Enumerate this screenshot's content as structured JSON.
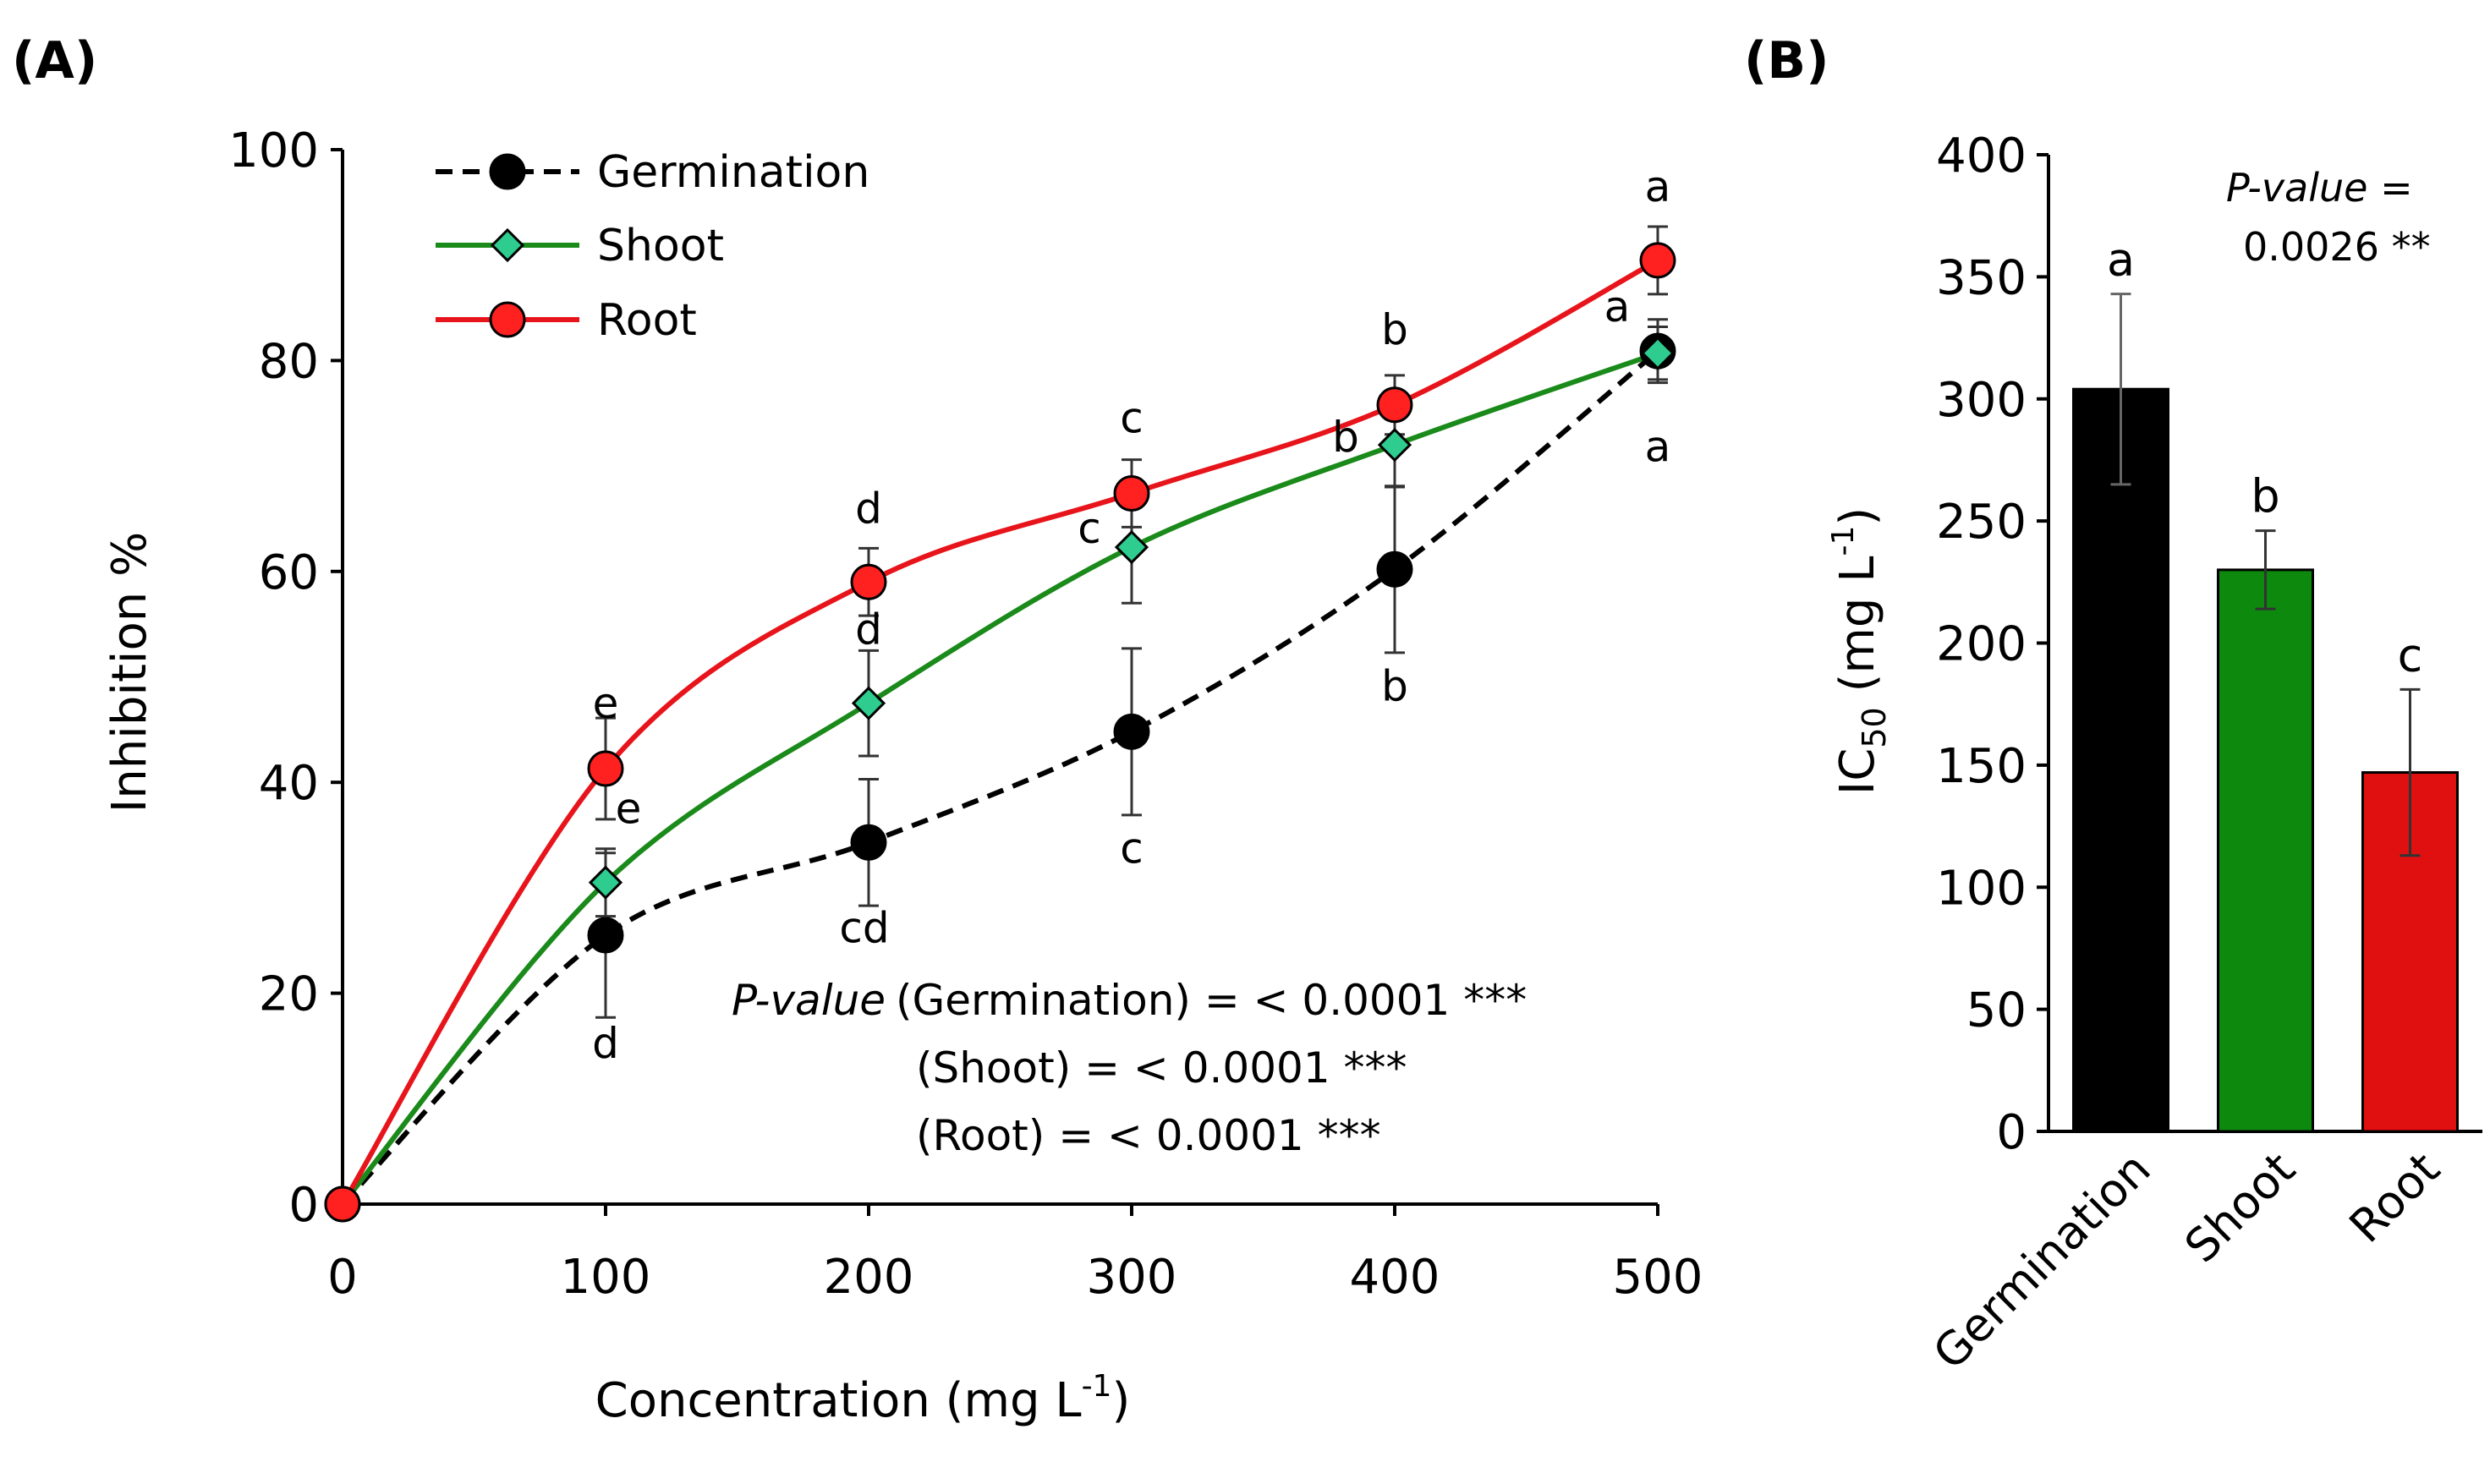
{
  "chart_data": [
    {
      "panel": "(A)",
      "type": "line",
      "title": "",
      "xlabel": "Concentration (mg L",
      "xlabel_sup": "-1",
      "xlabel_end": ")",
      "ylabel": "Inhibition %",
      "x": [
        0,
        100,
        200,
        300,
        400,
        500
      ],
      "xlim": [
        0,
        500
      ],
      "ylim": [
        0,
        100
      ],
      "xticks": [
        0,
        100,
        200,
        300,
        400,
        500
      ],
      "yticks": [
        0,
        20,
        40,
        60,
        80,
        100
      ],
      "legend_position": "top-left",
      "series": [
        {
          "name": "Germination",
          "line_style": "dashed",
          "marker": "circle",
          "line_color": "#000000",
          "marker_color": "#000000",
          "values": [
            0,
            25.5,
            34.3,
            44.8,
            60.2,
            80.9
          ],
          "errors": [
            0,
            7.8,
            6,
            7.9,
            7.9,
            3
          ],
          "letters": [
            "",
            "d",
            "cd",
            "c",
            "b",
            "a"
          ]
        },
        {
          "name": "Shoot",
          "line_style": "solid",
          "marker": "diamond",
          "line_color": "#1a8a1a",
          "marker_color": "#2ecc8f",
          "values": [
            0,
            30.5,
            47.5,
            62.3,
            72,
            80.7
          ],
          "errors": [
            0,
            3.2,
            5,
            5.3,
            4,
            2.5
          ],
          "letters": [
            "",
            "e",
            "d",
            "c",
            "b",
            "a"
          ]
        },
        {
          "name": "Root",
          "line_style": "solid",
          "marker": "circle",
          "line_color": "#e8141b",
          "marker_color": "#ff2020",
          "values": [
            0,
            41.3,
            59,
            67.4,
            75.8,
            89.5
          ],
          "errors": [
            0,
            4.8,
            3.2,
            3.2,
            2.8,
            3.2
          ],
          "letters": [
            "",
            "e",
            "d",
            "c",
            "b",
            "a"
          ]
        }
      ],
      "p_value": {
        "label": "P-value",
        "lines": [
          "(Germination) = < 0.0001 ***",
          "(Shoot) = < 0.0001 ***",
          "(Root) = < 0.0001 ***"
        ]
      }
    },
    {
      "panel": "(B)",
      "type": "bar",
      "title": "",
      "ylabel_main": "IC",
      "ylabel_sub": "50",
      "ylabel_rest": " (mg L",
      "ylabel_sup": "-1",
      "ylabel_end": ")",
      "categories": [
        "Germination",
        "Shoot",
        "Root"
      ],
      "values": [
        304,
        230,
        147
      ],
      "errors": [
        39,
        16,
        34
      ],
      "letters": [
        "a",
        "b",
        "c"
      ],
      "colors": [
        "#000000",
        "#0d8a0d",
        "#e01010"
      ],
      "ylim": [
        0,
        400
      ],
      "yticks": [
        0,
        50,
        100,
        150,
        200,
        250,
        300,
        350,
        400
      ],
      "p_value": {
        "label": "P-value",
        "suffix": " =",
        "value": "0.0026 **"
      }
    }
  ]
}
